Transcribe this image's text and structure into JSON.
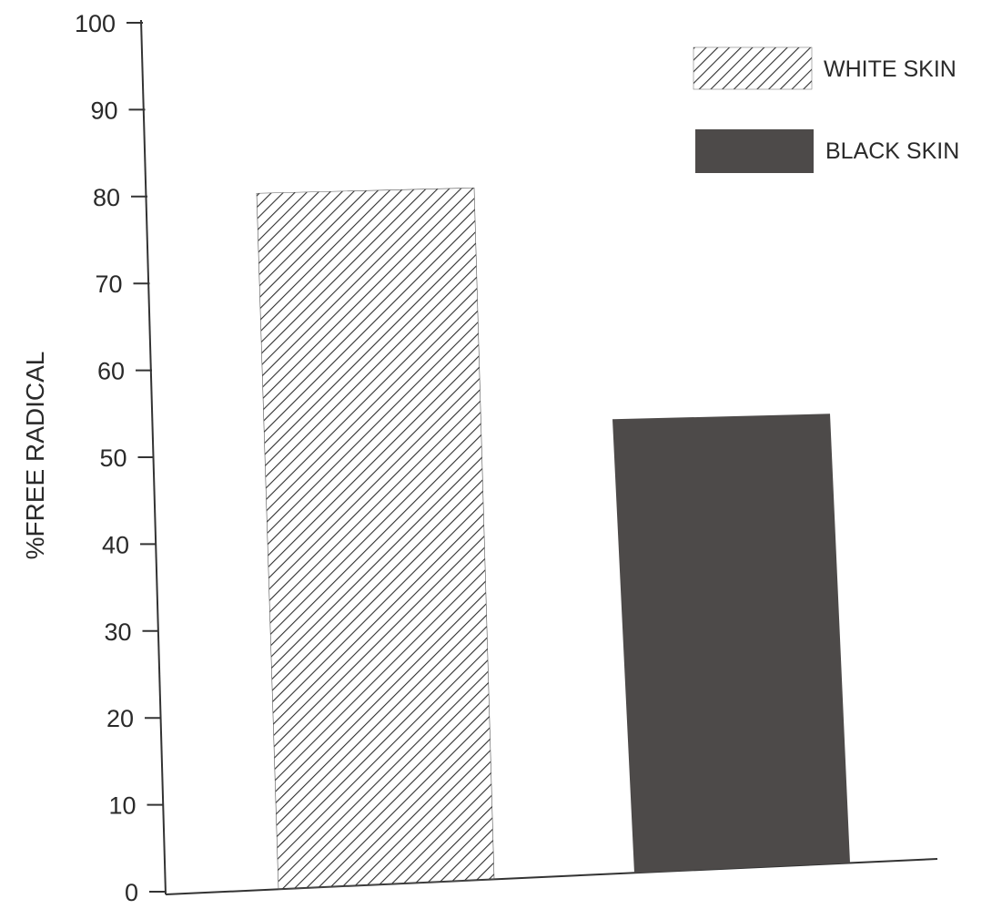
{
  "chart_data": {
    "type": "bar",
    "categories": [
      "WHITE SKIN",
      "BLACK SKIN"
    ],
    "series": [
      {
        "name": "WHITE SKIN",
        "values": [
          81,
          null
        ],
        "fill": "hatch"
      },
      {
        "name": "BLACK SKIN",
        "values": [
          null,
          55
        ],
        "fill": "solid"
      }
    ],
    "values": [
      81,
      55
    ],
    "title": "",
    "xlabel": "",
    "ylabel": "%FREE RADICAL",
    "ylim": [
      0,
      100
    ],
    "yticks": [
      "0",
      "10",
      "20",
      "30",
      "40",
      "50",
      "60",
      "70",
      "80",
      "90",
      "100"
    ],
    "grid": false,
    "legend": {
      "position": "top-right",
      "items": [
        {
          "label": "WHITE SKIN",
          "fill": "hatch"
        },
        {
          "label": "BLACK SKIN",
          "fill": "solid"
        }
      ]
    },
    "colors": {
      "axis": "#333333",
      "hatch_stroke": "#2f2f2f",
      "solid_fill": "#4d4a49",
      "background": "#ffffff"
    }
  }
}
